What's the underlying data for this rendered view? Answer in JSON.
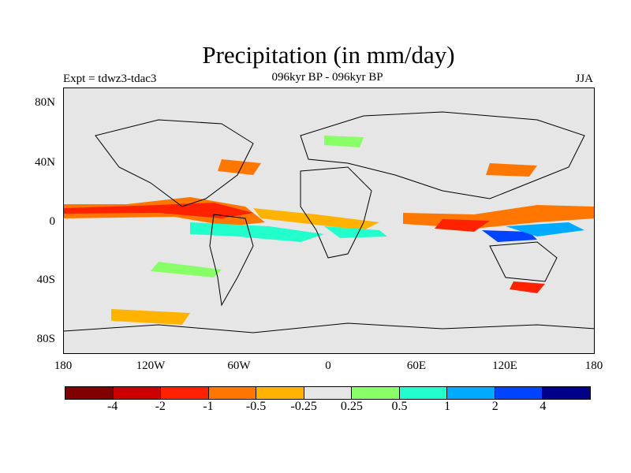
{
  "title": "Precipitation (in mm/day)",
  "left_label": "Expt = tdwz3-tdac3",
  "center_label": "096kyr BP - 096kyr BP",
  "right_label": "JJA",
  "map": {
    "type": "contour-map",
    "background_color": "#e6e6e6",
    "lat_labels": [
      "80N",
      "40N",
      "0",
      "40S",
      "80S"
    ],
    "lon_labels": [
      "180",
      "120W",
      "60W",
      "0",
      "60E",
      "120E",
      "180"
    ]
  },
  "colorbar": {
    "colors": [
      "#800000",
      "#cc0000",
      "#ff2200",
      "#ff7700",
      "#ffb300",
      "#e6e6e6",
      "#88ff66",
      "#22ffcc",
      "#00aaff",
      "#0044ff",
      "#000088"
    ],
    "labels": [
      "-4",
      "-2",
      "-1",
      "-0.5",
      "-0.25",
      "0.25",
      "0.5",
      "1",
      "2",
      "4"
    ]
  }
}
